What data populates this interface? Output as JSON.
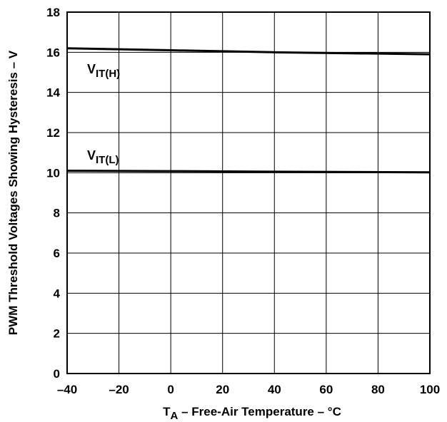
{
  "chart_data": {
    "type": "line",
    "title": "",
    "xlabel": "T_A – Free-Air Temperature – °C",
    "xlabel_main": "T",
    "xlabel_sub": "A",
    "xlabel_rest": " – Free-Air Temperature – °C",
    "ylabel": "PWM Threshold Voltages Showing Hysteresis – V",
    "xlim": [
      -40,
      100
    ],
    "ylim": [
      0,
      18
    ],
    "xticks": [
      -40,
      -20,
      0,
      20,
      40,
      60,
      80,
      100
    ],
    "xtick_labels": [
      "–40",
      "–20",
      "0",
      "20",
      "40",
      "60",
      "80",
      "100"
    ],
    "yticks": [
      0,
      2,
      4,
      6,
      8,
      10,
      12,
      14,
      16,
      18
    ],
    "ytick_labels": [
      "0",
      "2",
      "4",
      "6",
      "8",
      "10",
      "12",
      "14",
      "16",
      "18"
    ],
    "grid": true,
    "series": [
      {
        "name": "VIT(H)",
        "label_main": "V",
        "label_sub": "IT(H)",
        "x": [
          -40,
          0,
          40,
          100
        ],
        "y": [
          16.2,
          16.1,
          16.0,
          15.9
        ]
      },
      {
        "name": "VIT(L)",
        "label_main": "V",
        "label_sub": "IT(L)",
        "x": [
          -40,
          0,
          40,
          100
        ],
        "y": [
          10.1,
          10.08,
          10.05,
          10.02
        ]
      }
    ],
    "colors": {
      "line": "#000000",
      "grid": "#000000",
      "background": "#ffffff"
    }
  }
}
